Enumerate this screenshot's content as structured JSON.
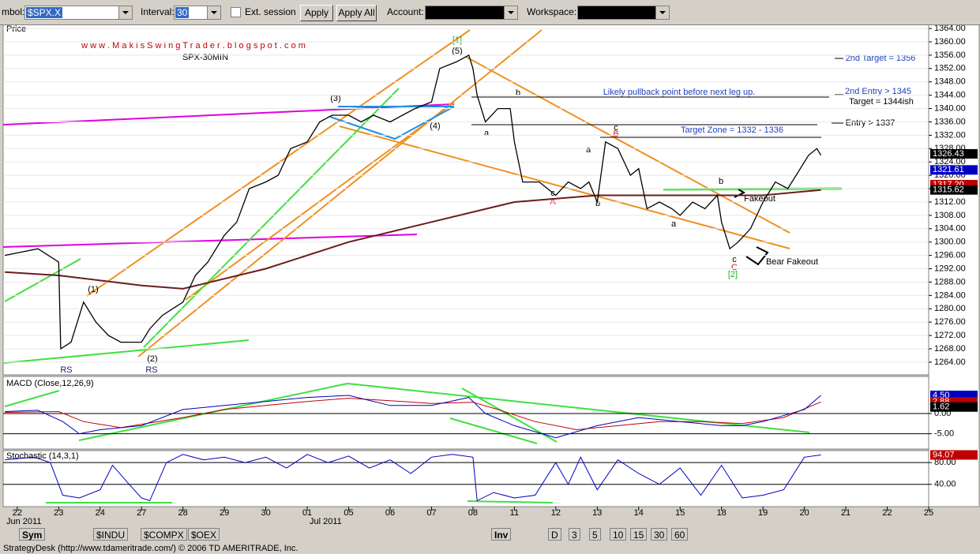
{
  "toolbar": {
    "symbol_label": "mbol:",
    "symbol": "$SPX.X",
    "interval_label": "Interval:",
    "interval": "30",
    "ext_session": "Ext. session",
    "apply": "Apply",
    "apply_all": "Apply All",
    "account_label": "Account:",
    "workspace_label": "Workspace:"
  },
  "chart_data": {
    "type": "line",
    "price_label": "Price",
    "watermark": "w w w . M a k i s S w i n g T r a d e r . b l o g s p o t . c o m",
    "subtitle": "SPX-30MIN",
    "categories": [
      "22",
      "23",
      "24",
      "27",
      "28",
      "29",
      "30",
      "01",
      "05",
      "06",
      "07",
      "08",
      "11",
      "12",
      "13",
      "14",
      "15",
      "18",
      "19",
      "20",
      "21",
      "22",
      "25"
    ],
    "months": [
      "Jun 2011",
      "Jul 2011"
    ],
    "xlim": [
      -0.34,
      22
    ],
    "ylim": [
      1260.2,
      1365.2
    ],
    "yticks": [
      {
        "value": 1264,
        "label": "1264.00"
      },
      {
        "value": 1268,
        "label": "1268.00"
      },
      {
        "value": 1272,
        "label": "1272.00"
      },
      {
        "value": 1276,
        "label": "1276.00"
      },
      {
        "value": 1280,
        "label": "1280.00"
      },
      {
        "value": 1284,
        "label": "1284.00"
      },
      {
        "value": 1288,
        "label": "1288.00"
      },
      {
        "value": 1292,
        "label": "1292.00"
      },
      {
        "value": 1296,
        "label": "1296.00"
      },
      {
        "value": 1300,
        "label": "1300.00"
      },
      {
        "value": 1304,
        "label": "1304.00"
      },
      {
        "value": 1308,
        "label": "1308.00"
      },
      {
        "value": 1312,
        "label": "1312.00"
      },
      {
        "value": 1316,
        "label": "1316.00"
      },
      {
        "value": 1320,
        "label": "1320.00"
      },
      {
        "value": 1324,
        "label": "1324.00"
      },
      {
        "value": 1328,
        "label": "1328.00"
      },
      {
        "value": 1332,
        "label": "1332.00"
      },
      {
        "value": 1336,
        "label": "1336.00"
      },
      {
        "value": 1340,
        "label": "1340.00"
      },
      {
        "value": 1344,
        "label": "1344.00"
      },
      {
        "value": 1348,
        "label": "1348.00"
      },
      {
        "value": 1352,
        "label": "1352.00"
      },
      {
        "value": 1356,
        "label": "1356.00"
      },
      {
        "value": 1360,
        "label": "1360.00"
      },
      {
        "value": 1364,
        "label": "1364.00"
      }
    ],
    "price": {
      "color": "#000000",
      "x": [
        -0.3,
        0.5,
        1.0,
        1.05,
        1.3,
        1.6,
        1.9,
        2.2,
        2.5,
        2.8,
        3.0,
        3.2,
        3.5,
        4.0,
        4.3,
        4.6,
        5.0,
        5.3,
        5.6,
        6.0,
        6.3,
        6.6,
        7.0,
        7.3,
        7.6,
        8.0,
        8.3,
        8.6,
        9.0,
        9.3,
        9.6,
        10.0,
        10.2,
        10.6,
        10.9,
        11.0,
        11.1,
        11.3,
        11.6,
        11.9,
        12.0,
        12.2,
        12.6,
        13.0,
        13.3,
        13.6,
        13.8,
        14.0,
        14.2,
        14.5,
        14.8,
        15.0,
        15.2,
        15.5,
        15.8,
        16.0,
        16.3,
        16.6,
        16.9,
        17.0,
        17.2,
        17.4,
        17.7,
        18.0,
        18.3,
        18.6,
        18.9,
        19.1,
        19.3,
        19.4
      ],
      "values": [
        1296,
        1298,
        1294,
        1268,
        1270,
        1282,
        1276,
        1272,
        1270,
        1270,
        1270,
        1274,
        1278,
        1282,
        1290,
        1294,
        1302,
        1306,
        1316,
        1318,
        1320,
        1328,
        1330,
        1336,
        1338,
        1338,
        1336,
        1338,
        1336,
        1338,
        1340,
        1342,
        1352,
        1354,
        1356,
        1352,
        1344,
        1336,
        1340,
        1340,
        1330,
        1318,
        1318,
        1314,
        1318,
        1316,
        1318,
        1312,
        1330,
        1328,
        1320,
        1322,
        1310,
        1312,
        1310,
        1308,
        1312,
        1310,
        1314,
        1306,
        1298,
        1300,
        1304,
        1312,
        1318,
        1316,
        1322,
        1326,
        1328,
        1326
      ]
    },
    "ma": {
      "color": "#6b1c1c",
      "x": [
        -0.3,
        1,
        3,
        4,
        6,
        8,
        10,
        12,
        14,
        16,
        18,
        19.4
      ],
      "values": [
        1291,
        1290,
        1287,
        1286,
        1292,
        1300,
        1306,
        1312,
        1314,
        1314,
        1314,
        1315.62
      ]
    },
    "price_flags": [
      {
        "value": 1326.43,
        "label": "1326.43",
        "color": "#000000"
      },
      {
        "value": 1321.61,
        "label": "1321.61",
        "color": "#0000c0"
      },
      {
        "value": 1317.2,
        "label": "1317.20",
        "color": "#c00000"
      },
      {
        "value": 1315.62,
        "label": "1315.62",
        "color": "#000000"
      }
    ],
    "macd_label": "MACD (Close,12,26,9)",
    "macd_ylim": [
      -8.8,
      9.2
    ],
    "macd_yticks": [
      {
        "value": 0,
        "label": "0.00"
      },
      {
        "value": -5,
        "label": "-5.00"
      }
    ],
    "macd": {
      "color": "#0000c0",
      "x": [
        -0.3,
        0.5,
        1.1,
        1.5,
        2,
        3,
        4,
        5,
        6,
        7,
        8,
        9,
        10,
        10.9,
        11.3,
        12,
        13,
        14,
        15,
        16,
        17,
        17.5,
        18,
        19,
        19.4
      ],
      "values": [
        0.5,
        0.8,
        -2,
        -5,
        -4,
        -3,
        1,
        2,
        3,
        4,
        4.5,
        2,
        2,
        4,
        0,
        -3,
        -6,
        -3,
        -1,
        -2,
        -3,
        -3,
        -2,
        1,
        4.5
      ]
    },
    "signal": {
      "color": "#c00000",
      "x": [
        -0.3,
        1,
        1.6,
        2.5,
        4,
        5,
        6,
        7,
        8,
        9,
        10,
        11,
        11.6,
        12.5,
        13.5,
        14.5,
        15.5,
        16.5,
        17.5,
        18.5,
        19.4
      ],
      "values": [
        0.3,
        0.5,
        -2,
        -3.5,
        -1,
        1,
        2,
        3,
        3.8,
        3.2,
        2.5,
        2.8,
        1,
        -2,
        -4,
        -3,
        -2,
        -2,
        -2.5,
        -1,
        2.88
      ]
    },
    "macd_flags": [
      {
        "value": 4.5,
        "label": "4.50",
        "color": "#0000c0"
      },
      {
        "value": 2.88,
        "label": "2.88",
        "color": "#c00000"
      },
      {
        "value": 1.62,
        "label": "1.62",
        "color": "#000000"
      }
    ],
    "stoch_label": "Stochastic (14,3,1)",
    "stoch_ylim": [
      -1,
      102
    ],
    "stoch_yticks": [
      {
        "value": 80,
        "label": "80.00"
      },
      {
        "value": 40,
        "label": "40.00"
      }
    ],
    "stoch": {
      "color": "#0000c0",
      "x": [
        -0.3,
        0.4,
        0.8,
        1.1,
        1.5,
        2,
        2.3,
        2.7,
        3.0,
        3.2,
        3.6,
        4,
        4.5,
        5,
        5.5,
        6,
        6.5,
        7,
        7.5,
        8,
        8.5,
        9,
        9.5,
        10,
        10.5,
        11,
        11.1,
        11.5,
        12,
        12.5,
        13,
        13.3,
        13.6,
        14,
        14.5,
        15,
        15.5,
        16,
        16.5,
        17,
        17.5,
        18,
        18.5,
        19,
        19.4
      ],
      "values": [
        85,
        90,
        80,
        20,
        15,
        30,
        75,
        40,
        15,
        10,
        80,
        95,
        85,
        90,
        80,
        90,
        70,
        95,
        80,
        92,
        70,
        85,
        60,
        90,
        95,
        90,
        10,
        25,
        15,
        20,
        80,
        40,
        90,
        30,
        85,
        60,
        40,
        70,
        20,
        75,
        15,
        20,
        30,
        90,
        94.07
      ]
    },
    "stoch_flags": [
      {
        "value": 94.07,
        "label": "94.07",
        "color": "#c00000"
      }
    ],
    "annotations": [
      "(1)",
      "(2)",
      "(3)",
      "(4)",
      "(5)",
      "[1]",
      "a",
      "b",
      "c",
      "A",
      "a",
      "b",
      "c",
      "B",
      "a",
      "b",
      "c",
      "C",
      "[2]",
      "RS",
      "RS",
      "Likely pullback point before next leg up.",
      "Target Zone = 1332 - 1336",
      "2nd Target = 1356",
      "2nd Entry > 1345",
      "Target = 1344ish",
      "Entry > 1337",
      "Fakeout",
      "Bear Fakeout"
    ]
  },
  "bottom_bar": {
    "sym": "Sym",
    "tabs": [
      "$INDU",
      "$COMPX",
      "$OEX"
    ],
    "inv": "Inv",
    "intervals": [
      "D",
      "3",
      "5",
      "10",
      "15",
      "30",
      "60"
    ]
  },
  "status": "StrategyDesk (http://www.tdameritrade.com/) © 2006 TD AMERITRADE, Inc."
}
